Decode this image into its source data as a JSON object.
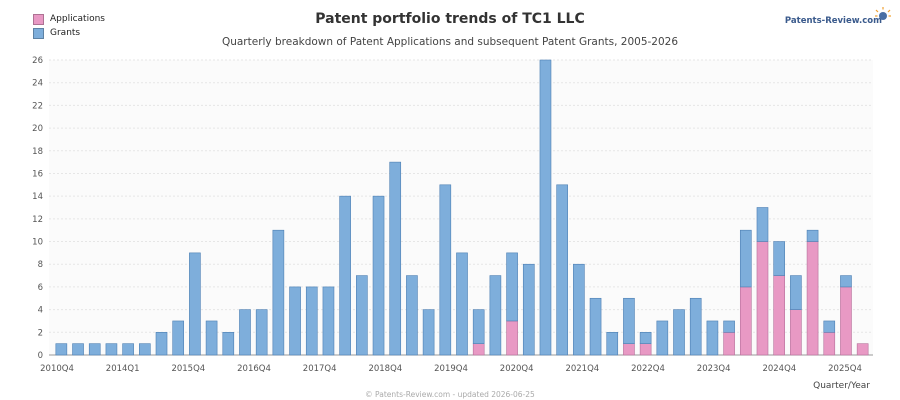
{
  "chart_data": {
    "type": "bar",
    "stacked": true,
    "title": "Patent portfolio trends of TC1 LLC",
    "subtitle": "Quarterly breakdown of Patent Applications and subsequent Patent Grants, 2005-2026",
    "xlabel": "Quarter/Year",
    "ylabel": "",
    "ylim": [
      0,
      26
    ],
    "yticks": [
      0,
      2,
      4,
      6,
      8,
      10,
      12,
      14,
      16,
      18,
      20,
      22,
      24,
      26
    ],
    "grid": true,
    "legend_position": "top-left",
    "x_tick_labels": [
      "2010Q4",
      "2014Q1",
      "2015Q4",
      "2016Q4",
      "2017Q4",
      "2018Q4",
      "2019Q4",
      "2020Q4",
      "2021Q4",
      "2022Q4",
      "2023Q4",
      "2024Q4",
      "2025Q4"
    ],
    "series": [
      {
        "name": "Applications",
        "color": "#e899c4",
        "values": [
          0,
          0,
          0,
          0,
          0,
          0,
          0,
          0,
          0,
          0,
          0,
          0,
          0,
          0,
          0,
          0,
          0,
          0,
          0,
          0,
          0,
          0,
          0,
          0,
          0,
          1,
          0,
          3,
          0,
          0,
          0,
          0,
          0,
          0,
          1,
          1,
          0,
          0,
          0,
          0,
          2,
          6,
          10,
          7,
          4,
          10,
          2,
          6,
          1
        ]
      },
      {
        "name": "Grants",
        "color": "#7eaedb",
        "values": [
          1,
          1,
          1,
          1,
          1,
          1,
          2,
          3,
          9,
          3,
          2,
          4,
          4,
          11,
          6,
          6,
          6,
          14,
          7,
          14,
          17,
          7,
          4,
          15,
          9,
          3,
          7,
          6,
          8,
          26,
          15,
          8,
          5,
          2,
          4,
          1,
          3,
          4,
          5,
          3,
          1,
          5,
          3,
          3,
          3,
          1,
          1,
          1,
          0,
          0,
          0,
          0,
          0,
          0,
          0,
          0
        ]
      }
    ]
  },
  "legend": {
    "applications_label": "Applications",
    "grants_label": "Grants"
  },
  "brand": "Patents-Review.com",
  "footer": "© Patents-Review.com - updated 2026-06-25"
}
